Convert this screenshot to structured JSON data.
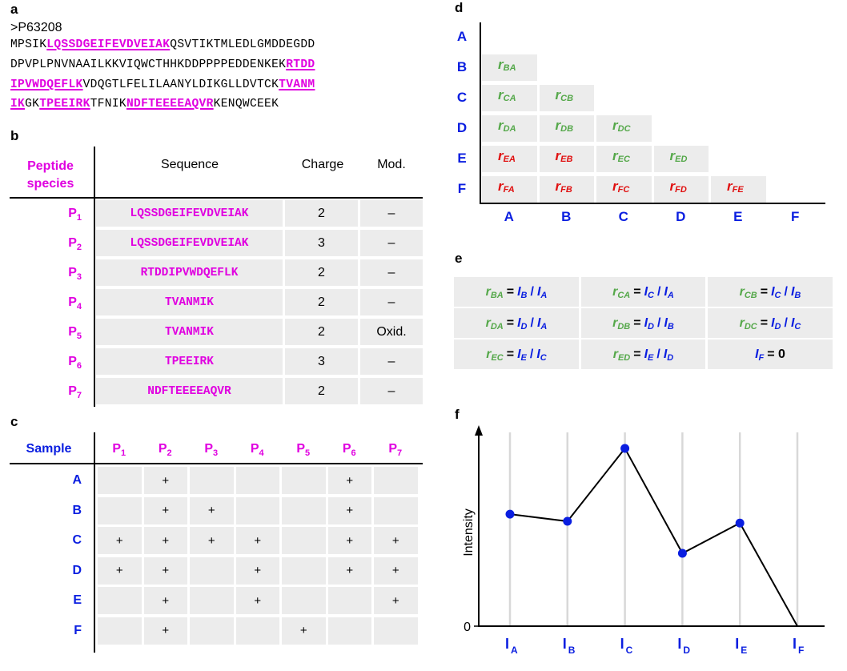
{
  "panel_labels": {
    "a": "a",
    "b": "b",
    "c": "c",
    "d": "d",
    "e": "e",
    "f": "f"
  },
  "panel_a": {
    "accession": ">P63208",
    "lines": [
      [
        {
          "t": "MPSIK",
          "h": false
        },
        {
          "t": "LQSSDGEIFEVDVEIAK",
          "h": true
        },
        {
          "t": "QSVTIKTMLEDLGMDDEGDD",
          "h": false
        }
      ],
      [
        {
          "t": "DPVPLPNVNAAILKKVIQWCTHHKDDPPPPEDDENKEK",
          "h": false
        },
        {
          "t": "RTDD",
          "h": true
        }
      ],
      [
        {
          "t": "IPVWDQEFLK",
          "h": true
        },
        {
          "t": "VDQGTLFELILAANYLDIKGLLDVTCK",
          "h": false
        },
        {
          "t": "TVANM",
          "h": true
        }
      ],
      [
        {
          "t": "IK",
          "h": true
        },
        {
          "t": "GK",
          "h": false
        },
        {
          "t": "TPEEIRK",
          "h": true
        },
        {
          "t": "TFNIK",
          "h": false
        },
        {
          "t": "NDFTEEEEAQVR",
          "h": true
        },
        {
          "t": "KENQWCEEK",
          "h": false
        }
      ]
    ]
  },
  "panel_b": {
    "headers": {
      "species_line1": "Peptide",
      "species_line2": "species",
      "sequence": "Sequence",
      "charge": "Charge",
      "mod": "Mod."
    },
    "rows": [
      {
        "p": "P",
        "n": "1",
        "seq": "LQSSDGEIFEVDVEIAK",
        "charge": "2",
        "mod": "–"
      },
      {
        "p": "P",
        "n": "2",
        "seq": "LQSSDGEIFEVDVEIAK",
        "charge": "3",
        "mod": "–"
      },
      {
        "p": "P",
        "n": "3",
        "seq": "RTDDIPVWDQEFLK",
        "charge": "2",
        "mod": "–"
      },
      {
        "p": "P",
        "n": "4",
        "seq": "TVANMIK",
        "charge": "2",
        "mod": "–"
      },
      {
        "p": "P",
        "n": "5",
        "seq": "TVANMIK",
        "charge": "2",
        "mod": "Oxid."
      },
      {
        "p": "P",
        "n": "6",
        "seq": "TPEEIRK",
        "charge": "3",
        "mod": "–"
      },
      {
        "p": "P",
        "n": "7",
        "seq": "NDFTEEEEAQVR",
        "charge": "2",
        "mod": "–"
      }
    ]
  },
  "panel_c": {
    "header": "Sample",
    "cols": [
      {
        "p": "P",
        "n": "1"
      },
      {
        "p": "P",
        "n": "2"
      },
      {
        "p": "P",
        "n": "3"
      },
      {
        "p": "P",
        "n": "4"
      },
      {
        "p": "P",
        "n": "5"
      },
      {
        "p": "P",
        "n": "6"
      },
      {
        "p": "P",
        "n": "7"
      }
    ],
    "rows": [
      {
        "s": "A",
        "cells": [
          "",
          "+",
          "",
          "",
          "",
          "+",
          ""
        ]
      },
      {
        "s": "B",
        "cells": [
          "",
          "+",
          "+",
          "",
          "",
          "+",
          ""
        ]
      },
      {
        "s": "C",
        "cells": [
          "+",
          "+",
          "+",
          "+",
          "",
          "+",
          "+"
        ]
      },
      {
        "s": "D",
        "cells": [
          "+",
          "+",
          "",
          "+",
          "",
          "+",
          "+"
        ]
      },
      {
        "s": "E",
        "cells": [
          "",
          "+",
          "",
          "+",
          "",
          "",
          "+"
        ]
      },
      {
        "s": "F",
        "cells": [
          "",
          "+",
          "",
          "",
          "+",
          "",
          ""
        ]
      }
    ]
  },
  "panel_d": {
    "row_labels": [
      "A",
      "B",
      "C",
      "D",
      "E",
      "F"
    ],
    "col_labels": [
      "A",
      "B",
      "C",
      "D",
      "E",
      "F"
    ],
    "cells": [
      [],
      [
        {
          "sub": "BA",
          "c": "green"
        }
      ],
      [
        {
          "sub": "CA",
          "c": "green"
        },
        {
          "sub": "CB",
          "c": "green"
        }
      ],
      [
        {
          "sub": "DA",
          "c": "green"
        },
        {
          "sub": "DB",
          "c": "green"
        },
        {
          "sub": "DC",
          "c": "green"
        }
      ],
      [
        {
          "sub": "EA",
          "c": "red"
        },
        {
          "sub": "EB",
          "c": "red"
        },
        {
          "sub": "EC",
          "c": "green"
        },
        {
          "sub": "ED",
          "c": "green"
        }
      ],
      [
        {
          "sub": "FA",
          "c": "red"
        },
        {
          "sub": "FB",
          "c": "red"
        },
        {
          "sub": "FC",
          "c": "red"
        },
        {
          "sub": "FD",
          "c": "red"
        },
        {
          "sub": "FE",
          "c": "red"
        }
      ]
    ],
    "symbol": "r",
    "colors": {
      "green": "#55a84a",
      "red": "#e01010",
      "blue": "#0a1ee0"
    }
  },
  "panel_e": {
    "rows": [
      [
        {
          "r": "BA",
          "n": "B",
          "d": "A"
        },
        {
          "r": "CA",
          "n": "C",
          "d": "A"
        },
        {
          "r": "CB",
          "n": "C",
          "d": "B"
        }
      ],
      [
        {
          "r": "DA",
          "n": "D",
          "d": "A"
        },
        {
          "r": "DB",
          "n": "D",
          "d": "B"
        },
        {
          "r": "DC",
          "n": "D",
          "d": "C"
        }
      ],
      [
        {
          "r": "EC",
          "n": "E",
          "d": "C"
        },
        {
          "r": "ED",
          "n": "E",
          "d": "D"
        },
        {
          "zero": "F",
          "eq": "= 0"
        }
      ]
    ]
  },
  "chart_data": {
    "type": "line",
    "categories": [
      "A",
      "B",
      "C",
      "D",
      "E",
      "F"
    ],
    "values": [
      0.63,
      0.59,
      1.0,
      0.41,
      0.58,
      0.0
    ],
    "ylabel": "Intensity",
    "ytick": "0",
    "xtick_prefix": "I",
    "grid": "vertical",
    "line_color": "#000000",
    "marker_color": "#0a1ee0"
  }
}
